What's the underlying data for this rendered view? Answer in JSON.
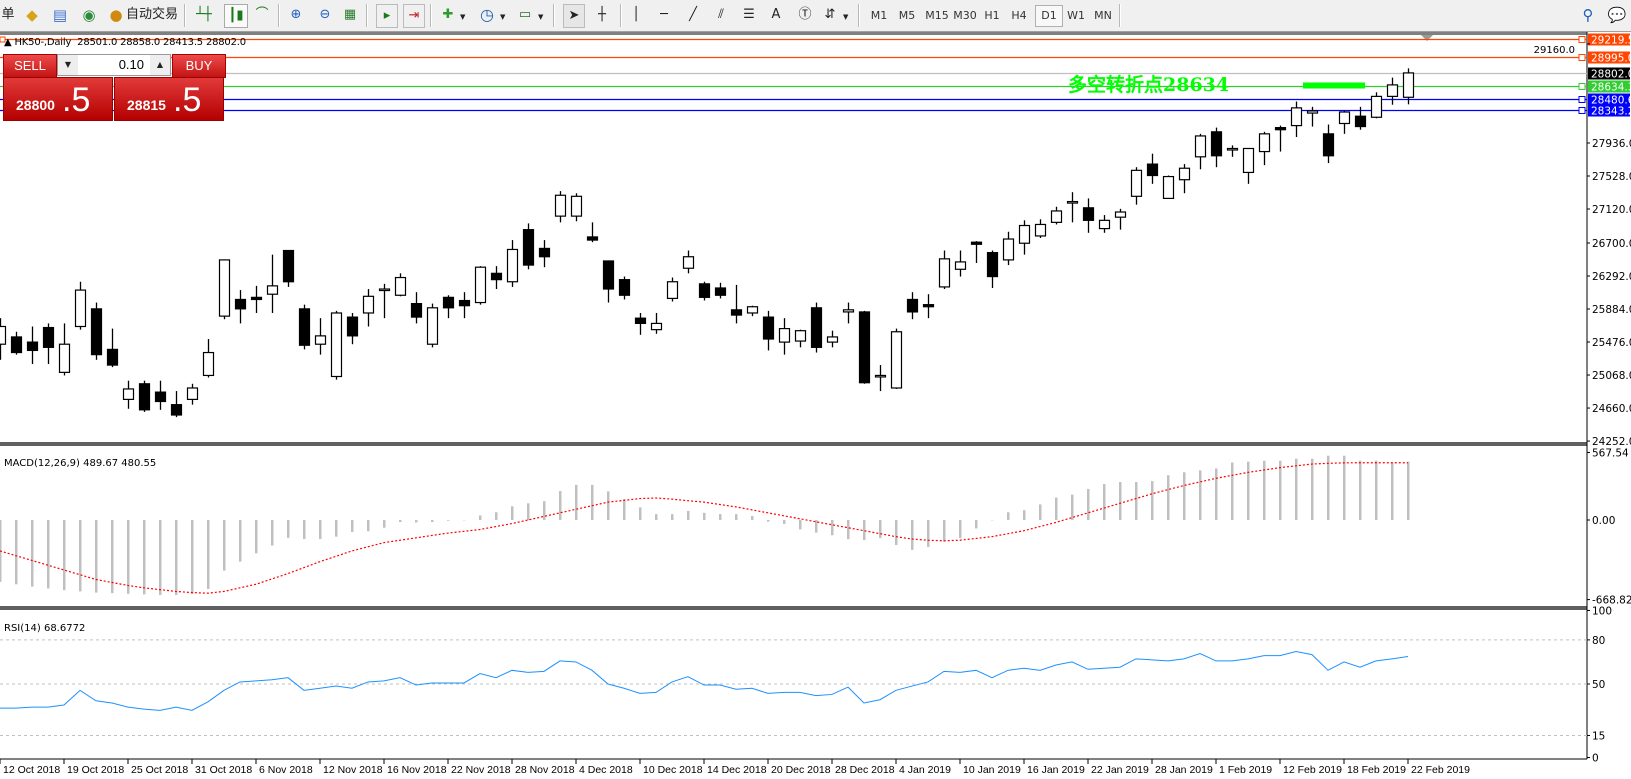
{
  "toolbar": {
    "cut_label": "单",
    "auto_trading_label": "自动交易",
    "timeframes": [
      "M1",
      "M5",
      "M15",
      "M30",
      "H1",
      "H4",
      "D1",
      "W1",
      "MN"
    ],
    "active_timeframe": "D1"
  },
  "chart": {
    "symbol": "HK50-,Daily",
    "ohlc_readout": "28501.0 28858.0 28413.5 28802.0"
  },
  "trade_panel": {
    "sell_label": "SELL",
    "buy_label": "BUY",
    "lot_value": "0.10",
    "sell_price_main": "28800",
    "sell_price_frac": ".5",
    "buy_price_main": "28815",
    "buy_price_frac": ".5"
  },
  "annotation": {
    "text": "多空转折点28634",
    "color": "#00ff00"
  },
  "horizontal_lines": [
    {
      "price": 29219.5,
      "label": "29219.5",
      "color": "#ff4500"
    },
    {
      "price": 28995.0,
      "label": "28995.0",
      "color": "#ff4500"
    },
    {
      "price": 28802.0,
      "label": "28802.0",
      "color": "#000000",
      "line_color": "#c0c0c0"
    },
    {
      "price": 28634.3,
      "label": "28634.3",
      "color": "#32cd32"
    },
    {
      "price": 28480.6,
      "label": "28480.6",
      "color": "#0000ff"
    },
    {
      "price": 28343.2,
      "label": "28343.2",
      "color": "#0000ff"
    }
  ],
  "chart_data": [
    {
      "type": "candlestick",
      "symbol": "HK50-,Daily",
      "ylim": [
        24228,
        29283
      ],
      "y_ticks": [
        29160.0,
        27936.0,
        27528.0,
        27120.0,
        26700.0,
        26292.0,
        25884.0,
        25476.0,
        25068.0,
        24660.0,
        24252.0
      ],
      "y_tick_labels": [
        "29160.0",
        "27936.0",
        "27528.0",
        "27120.0",
        "26700.0",
        "26292.0",
        "25884.0",
        "25476.0",
        "25068.0",
        "24660.0",
        "24252.0"
      ],
      "x_labels": [
        "12 Oct 2018",
        "19 Oct 2018",
        "25 Oct 2018",
        "31 Oct 2018",
        "6 Nov 2018",
        "12 Nov 2018",
        "16 Nov 2018",
        "22 Nov 2018",
        "28 Nov 2018",
        "4 Dec 2018",
        "10 Dec 2018",
        "14 Dec 2018",
        "20 Dec 2018",
        "28 Dec 2018",
        "4 Jan 2019",
        "10 Jan 2019",
        "16 Jan 2019",
        "22 Jan 2019",
        "28 Jan 2019",
        "1 Feb 2019",
        "12 Feb 2019",
        "18 Feb 2019",
        "22 Feb 2019"
      ],
      "x_label_every_bars": 4,
      "grid": false,
      "bull_color": "#ffffff",
      "bear_color": "#000000",
      "open": [
        25449,
        25539,
        25475,
        25655,
        25101,
        25668,
        25886,
        25385,
        24767,
        24960,
        24857,
        24702,
        24767,
        25063,
        25796,
        26002,
        26028,
        26067,
        26607,
        25886,
        25449,
        25050,
        25784,
        25835,
        26118,
        26054,
        25951,
        25449,
        26028,
        25989,
        25964,
        26325,
        26221,
        26865,
        26633,
        27032,
        27032,
        26775,
        26478,
        26247,
        25771,
        25629,
        26015,
        26388,
        26195,
        26144,
        25874,
        25835,
        25784,
        25475,
        25488,
        25899,
        25475,
        25848,
        25848,
        25063,
        24908,
        26002,
        25938,
        26157,
        26375,
        26710,
        26581,
        26491,
        26697,
        26787,
        26955,
        27212,
        27135,
        26878,
        27019,
        27277,
        27675,
        27251,
        27482,
        27765,
        28074,
        27868,
        27572,
        27830,
        28126,
        28151,
        28306,
        28049,
        28177,
        28267,
        28254,
        28512,
        28501.0
      ],
      "high": [
        25771,
        25603,
        25668,
        25706,
        25706,
        26221,
        25964,
        25642,
        24998,
        24998,
        24998,
        24870,
        24960,
        25513,
        26491,
        26118,
        26170,
        26556,
        26607,
        25938,
        25771,
        25861,
        25835,
        26131,
        26195,
        26325,
        26092,
        25951,
        26054,
        26092,
        26414,
        26414,
        26736,
        26942,
        26736,
        27341,
        27315,
        26955,
        26478,
        26285,
        25835,
        25835,
        26273,
        26607,
        26221,
        26208,
        26182,
        25925,
        25861,
        25771,
        25629,
        25964,
        25616,
        25964,
        25861,
        25191,
        25642,
        26092,
        26067,
        26607,
        26607,
        26723,
        26607,
        26839,
        26980,
        26993,
        27148,
        27328,
        27251,
        27045,
        27122,
        27637,
        27804,
        27534,
        27675,
        28049,
        28126,
        27907,
        27868,
        28074,
        28151,
        28448,
        28383,
        28164,
        28332,
        28383,
        28563,
        28744,
        28858.0
      ],
      "low": [
        25256,
        25320,
        25204,
        25204,
        25063,
        25629,
        25256,
        25166,
        24651,
        24612,
        24638,
        24548,
        24702,
        25037,
        25758,
        25706,
        25835,
        25835,
        26157,
        25385,
        25320,
        25011,
        25449,
        25668,
        25771,
        26041,
        25706,
        25410,
        25771,
        25771,
        25938,
        26131,
        26157,
        26375,
        26401,
        26955,
        26968,
        26710,
        25964,
        26002,
        25565,
        25578,
        25977,
        26325,
        25989,
        26015,
        25706,
        25796,
        25372,
        25320,
        25410,
        25346,
        25410,
        25706,
        24960,
        24870,
        24896,
        25758,
        25771,
        26131,
        26285,
        26453,
        26144,
        26427,
        26556,
        26762,
        26929,
        26955,
        26826,
        26826,
        26865,
        27174,
        27431,
        27251,
        27315,
        27611,
        27637,
        27765,
        27431,
        27662,
        27830,
        28010,
        28139,
        27688,
        28049,
        28100,
        28241,
        28409,
        28413.5
      ],
      "close": [
        25668,
        25346,
        25372,
        25410,
        25449,
        26118,
        25320,
        25191,
        24896,
        24638,
        24741,
        24574,
        24908,
        25346,
        26491,
        25886,
        26002,
        26170,
        26221,
        25436,
        25552,
        25835,
        25552,
        26041,
        26131,
        26273,
        25784,
        25899,
        25899,
        25925,
        26401,
        26247,
        26620,
        26427,
        26530,
        27290,
        27277,
        26736,
        26131,
        26054,
        25706,
        25706,
        26221,
        26530,
        26028,
        26054,
        25809,
        25912,
        25513,
        25642,
        25616,
        25410,
        25539,
        25874,
        24973,
        25063,
        25603,
        25848,
        25912,
        26504,
        26466,
        26684,
        26285,
        26749,
        26916,
        26929,
        27096,
        27212,
        26980,
        26980,
        27083,
        27598,
        27534,
        27521,
        27624,
        28023,
        27778,
        27868,
        27868,
        28049,
        28100,
        28370,
        28332,
        27778,
        28319,
        28139,
        28512,
        28654,
        28802.0
      ]
    },
    {
      "type": "bar+line",
      "title": "MACD(12,26,9) 489.67 480.55",
      "ylim": [
        -731,
        630
      ],
      "y_ticks": [
        567.54,
        0.0,
        -668.82
      ],
      "y_tick_labels": [
        "567.54",
        "0.00",
        "-668.82"
      ],
      "histogram_color": "#c0c0c0",
      "signal_color": "#ff0000",
      "macd": [
        -520,
        -540,
        -560,
        -575,
        -590,
        -600,
        -610,
        -615,
        -620,
        -625,
        -630,
        -630,
        -620,
        -580,
        -425,
        -350,
        -280,
        -215,
        -150,
        -160,
        -160,
        -140,
        -100,
        -95,
        -65,
        -17,
        -21,
        -17,
        -6,
        -3,
        38,
        65,
        115,
        140,
        158,
        243,
        295,
        295,
        240,
        175,
        106,
        49,
        49,
        76,
        60,
        50,
        49,
        33,
        -14,
        -33,
        -79,
        -106,
        -128,
        -161,
        -169,
        -152,
        -210,
        -251,
        -226,
        -182,
        -152,
        -71,
        -3,
        65,
        82,
        131,
        188,
        213,
        261,
        302,
        319,
        319,
        327,
        376,
        401,
        417,
        433,
        483,
        490,
        498,
        498,
        515,
        515,
        540,
        540,
        498,
        498,
        483,
        489.67
      ],
      "signal": [
        -260,
        -300,
        -340,
        -380,
        -420,
        -460,
        -500,
        -525,
        -550,
        -570,
        -585,
        -600,
        -610,
        -615,
        -600,
        -570,
        -540,
        -495,
        -450,
        -400,
        -350,
        -305,
        -260,
        -225,
        -190,
        -170,
        -150,
        -130,
        -110,
        -95,
        -80,
        -55,
        -30,
        0,
        30,
        60,
        90,
        120,
        150,
        165,
        180,
        185,
        175,
        162,
        150,
        130,
        110,
        85,
        60,
        35,
        10,
        -15,
        -40,
        -65,
        -90,
        -115,
        -140,
        -160,
        -170,
        -175,
        -170,
        -155,
        -140,
        -115,
        -90,
        -55,
        -20,
        20,
        60,
        100,
        140,
        180,
        220,
        255,
        290,
        320,
        350,
        375,
        400,
        420,
        440,
        455,
        470,
        476,
        480,
        481,
        481,
        481,
        480.55
      ]
    },
    {
      "type": "line",
      "title": "RSI(14) 68.6772",
      "ylim": [
        -1,
        101
      ],
      "y_ticks": [
        100,
        80,
        50,
        15,
        0
      ],
      "y_tick_labels": [
        "100",
        "80",
        "50",
        "15",
        "0"
      ],
      "levels": [
        80,
        50,
        15
      ],
      "line_color": "#1e90ff",
      "values": [
        33.6,
        33.6,
        34.3,
        34.3,
        35.7,
        45.7,
        38.6,
        37.1,
        34.3,
        32.9,
        32.1,
        34.3,
        32.1,
        37.9,
        45.7,
        51.4,
        52.1,
        52.9,
        54.3,
        45.7,
        47.1,
        48.6,
        47.1,
        51.4,
        52.1,
        54.3,
        49.3,
        50.7,
        50.7,
        50.7,
        57.1,
        54.3,
        59.3,
        57.9,
        58.6,
        65.7,
        65.0,
        59.3,
        50.0,
        47.1,
        43.6,
        44.3,
        51.4,
        55.0,
        49.3,
        49.3,
        46.4,
        47.1,
        43.6,
        44.3,
        44.3,
        42.1,
        42.9,
        47.9,
        37.1,
        39.3,
        45.7,
        48.6,
        51.4,
        58.6,
        57.9,
        59.3,
        54.3,
        59.3,
        60.7,
        59.3,
        62.9,
        65.0,
        60.0,
        60.7,
        61.4,
        67.1,
        66.4,
        65.7,
        67.1,
        70.7,
        65.7,
        65.7,
        67.1,
        69.3,
        69.3,
        72.1,
        70.0,
        59.3,
        65.0,
        61.4,
        65.7,
        67.1,
        68.6772
      ]
    }
  ]
}
